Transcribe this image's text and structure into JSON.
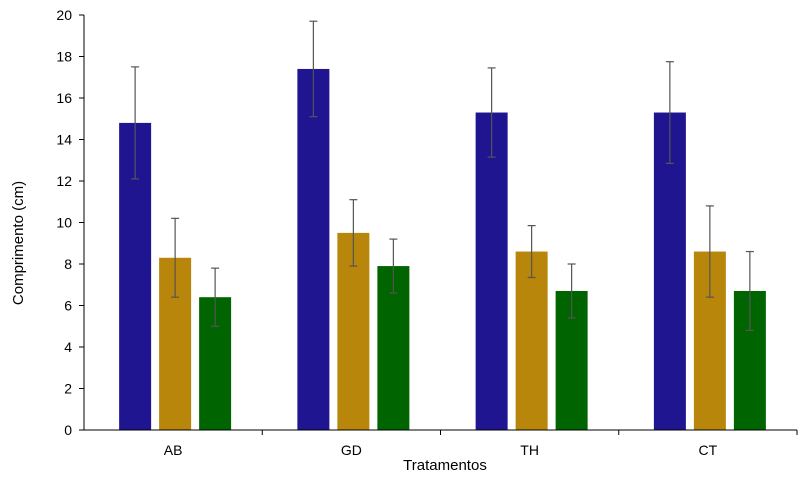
{
  "chart_data": {
    "type": "bar",
    "xlabel": "Tratamentos",
    "ylabel": "Comprimento (cm)",
    "ylim": [
      0,
      20
    ],
    "yticks": [
      0,
      2,
      4,
      6,
      8,
      10,
      12,
      14,
      16,
      18,
      20
    ],
    "grid": false,
    "categories": [
      "AB",
      "GD",
      "TH",
      "CT"
    ],
    "series": [
      {
        "color": "#1f1591",
        "values": [
          14.8,
          17.4,
          15.3,
          15.3
        ],
        "errors": [
          2.7,
          2.3,
          2.15,
          2.45
        ]
      },
      {
        "color": "#b8860b",
        "values": [
          8.3,
          9.5,
          8.6,
          8.6
        ],
        "errors": [
          1.9,
          1.6,
          1.25,
          2.2
        ]
      },
      {
        "color": "#006400",
        "values": [
          6.4,
          7.9,
          6.7,
          6.7
        ],
        "errors": [
          1.4,
          1.3,
          1.3,
          1.9
        ]
      }
    ]
  }
}
